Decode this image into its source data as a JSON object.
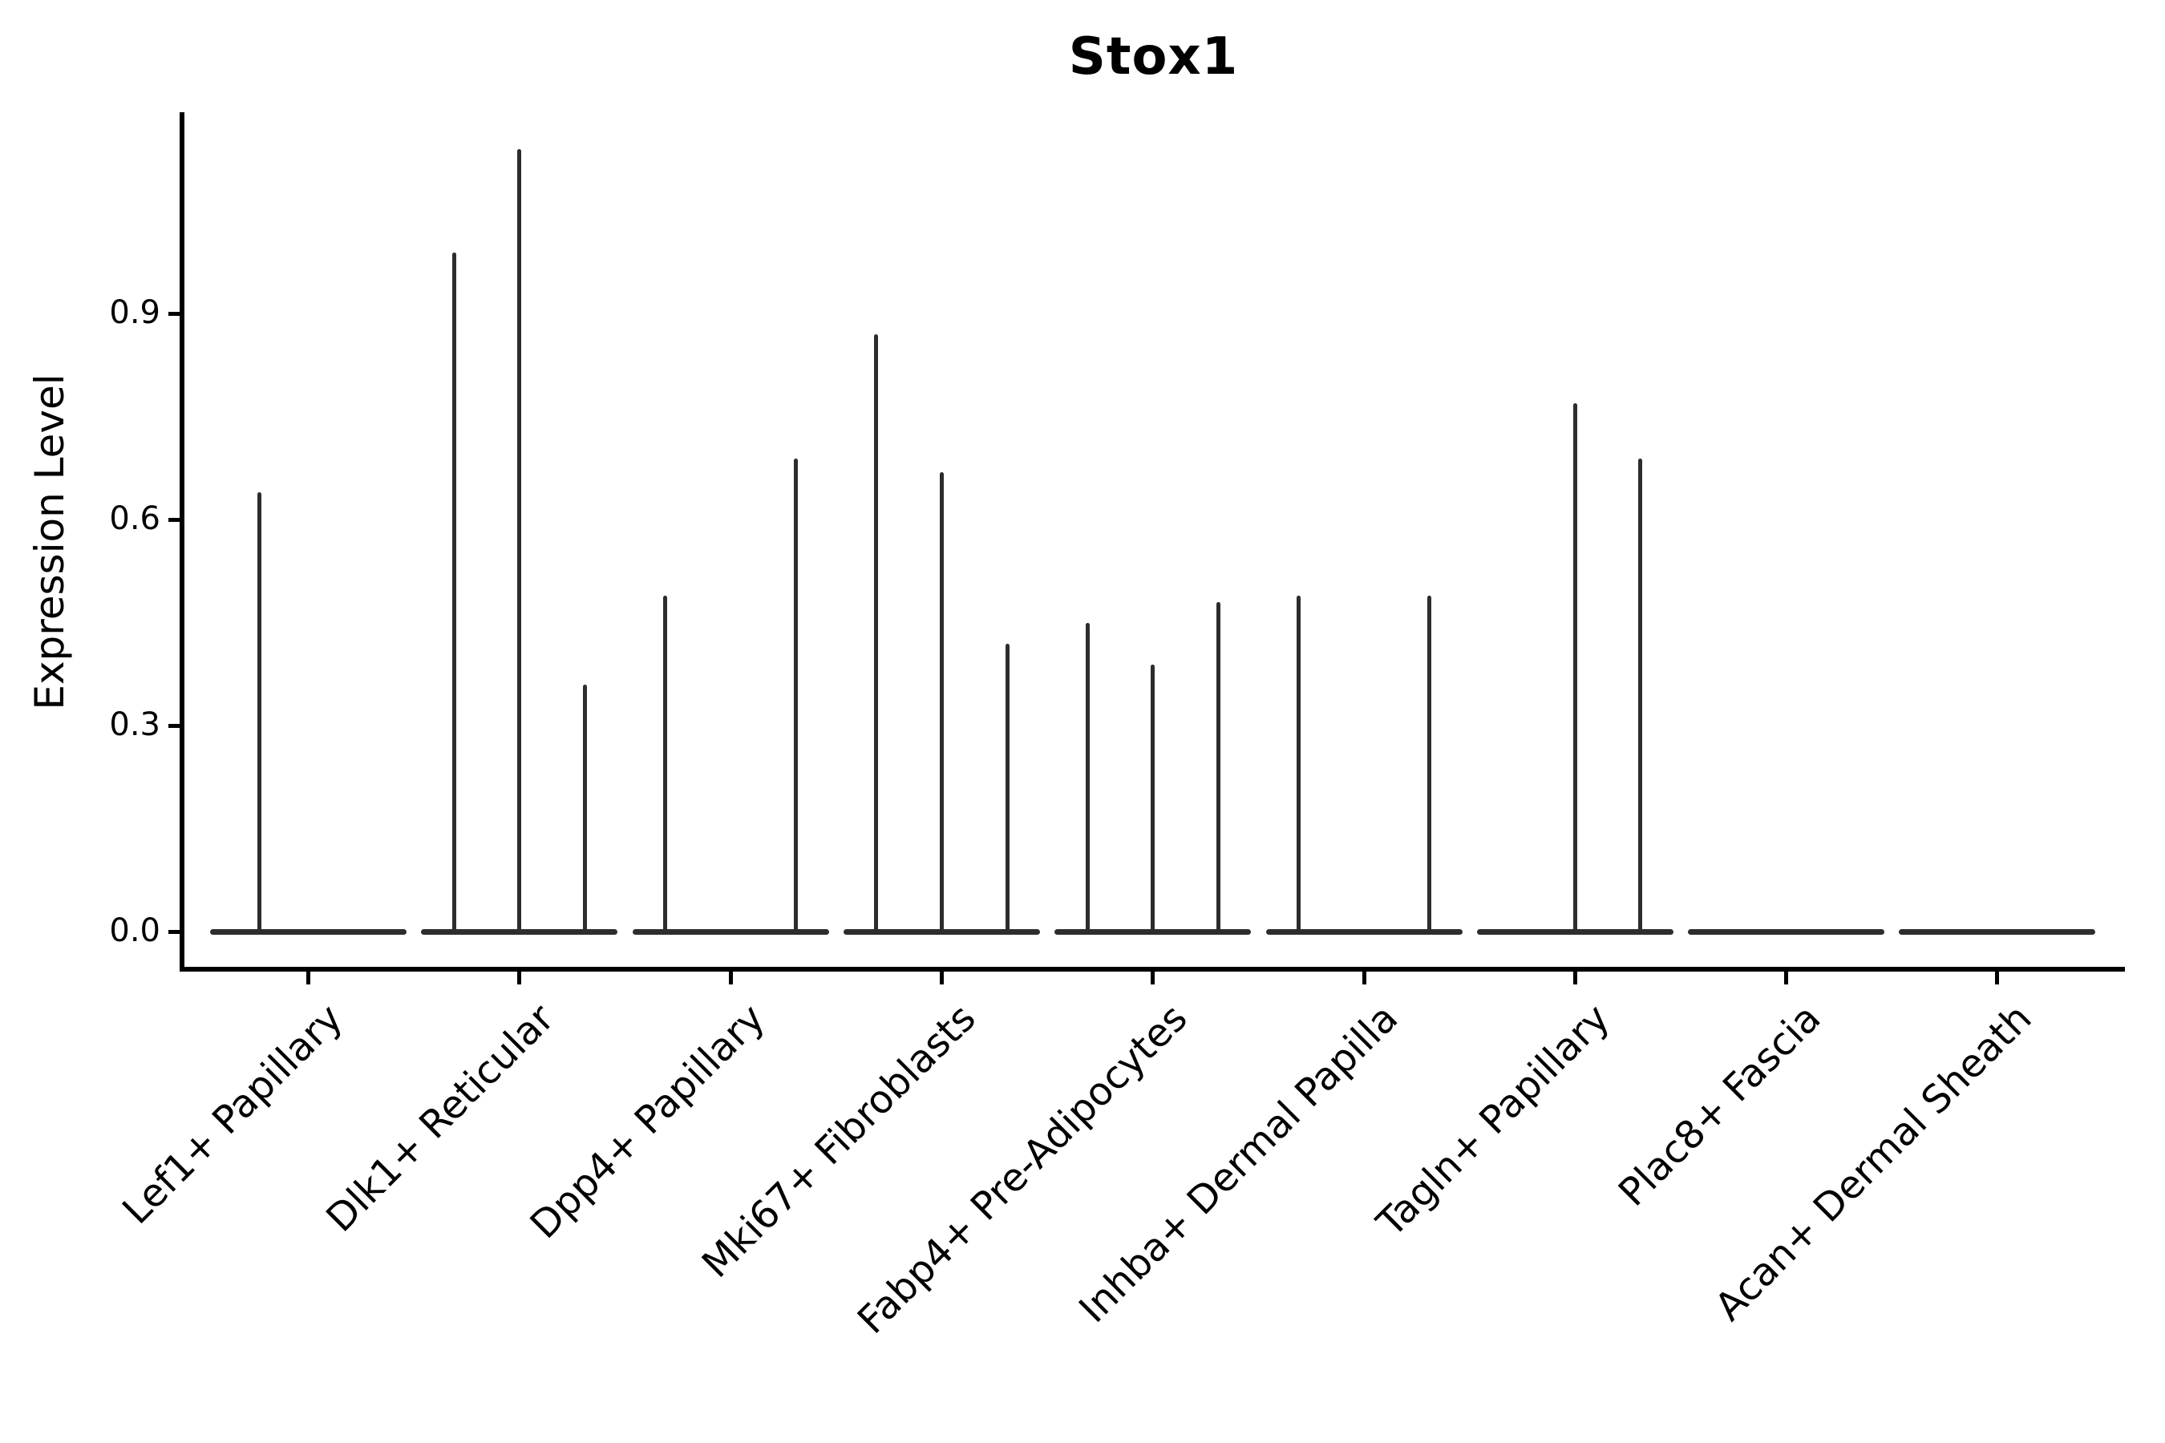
{
  "chart_data": {
    "type": "violin",
    "title": "Stox1",
    "xlabel": "",
    "ylabel": "Expression Level",
    "yticks": [
      0.0,
      0.3,
      0.6,
      0.9
    ],
    "ylim": [
      -0.05,
      1.19
    ],
    "grid": false,
    "legend": "none",
    "marks_color": "#2d2d2d",
    "categories": [
      {
        "label": "Lef1+ Papillary",
        "slots": 2,
        "spikes": [
          {
            "slot": 1,
            "value": 0.64
          }
        ]
      },
      {
        "label": "Dlk1+ Reticular",
        "slots": 3,
        "spikes": [
          {
            "slot": 1,
            "value": 0.99
          },
          {
            "slot": 2,
            "value": 1.14
          },
          {
            "slot": 3,
            "value": 0.36
          }
        ]
      },
      {
        "label": "Dpp4+ Papillary",
        "slots": 3,
        "spikes": [
          {
            "slot": 1,
            "value": 0.49
          },
          {
            "slot": 3,
            "value": 0.69
          }
        ]
      },
      {
        "label": "Mki67+ Fibroblasts",
        "slots": 3,
        "spikes": [
          {
            "slot": 1,
            "value": 0.87
          },
          {
            "slot": 2,
            "value": 0.67
          },
          {
            "slot": 3,
            "value": 0.42
          }
        ]
      },
      {
        "label": "Fabp4+ Pre-Adipocytes",
        "slots": 3,
        "spikes": [
          {
            "slot": 1,
            "value": 0.45
          },
          {
            "slot": 2,
            "value": 0.39
          },
          {
            "slot": 3,
            "value": 0.48
          }
        ]
      },
      {
        "label": "Inhba+ Dermal Papilla",
        "slots": 3,
        "spikes": [
          {
            "slot": 1,
            "value": 0.49
          },
          {
            "slot": 3,
            "value": 0.49
          }
        ]
      },
      {
        "label": "Tagln+ Papillary",
        "slots": 3,
        "spikes": [
          {
            "slot": 2,
            "value": 0.77
          },
          {
            "slot": 3,
            "value": 0.69
          }
        ]
      },
      {
        "label": "Plac8+ Fascia",
        "slots": 3,
        "spikes": []
      },
      {
        "label": "Acan+ Dermal Sheath",
        "slots": 3,
        "spikes": []
      }
    ]
  }
}
